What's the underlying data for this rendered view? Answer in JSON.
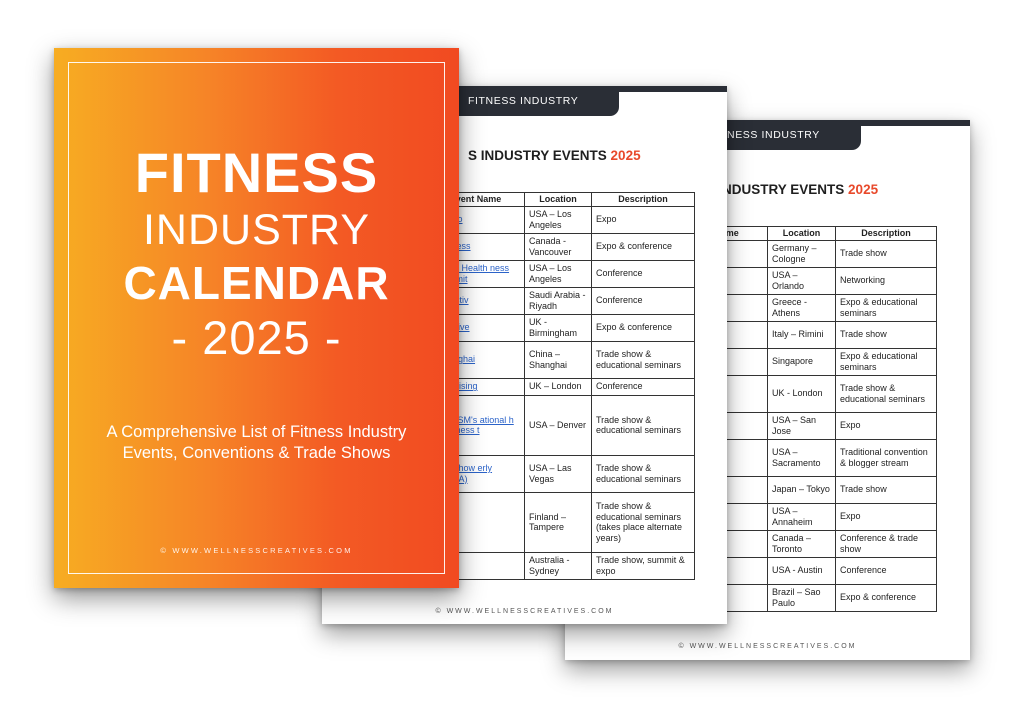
{
  "cover": {
    "line1": "FITNESS",
    "line2": "INDUSTRY",
    "line3": "CALENDAR",
    "line4": "- 2025 -",
    "subtitle": "A Comprehensive List of Fitness Industry Events, Conventions & Trade Shows",
    "footer": "© WWW.WELLNESSCREATIVES.COM"
  },
  "page_mid": {
    "tab": "FITNESS INDUSTRY",
    "heading": "S INDUSTRY EVENTS",
    "heading_year": "2025",
    "columns": [
      "vent Name",
      "Location",
      "Description"
    ],
    "rows": [
      {
        "name": "t Expo",
        "location": "USA – Los Angeles",
        "description": "Expo"
      },
      {
        "name": "Vellness",
        "location": "Canada - Vancouver",
        "description": "Expo & conference"
      },
      {
        "name": "ected Health ness Summit",
        "location": "USA – Los Angeles",
        "description": "Conference"
      },
      {
        "name": "nd Activ",
        "location": "Saudi Arabia - Riyadh",
        "description": "Conference"
      },
      {
        "name": "mX Live",
        "location": "UK - Birmingham",
        "description": "Expo & conference"
      },
      {
        "name": "Shanghai",
        "location": "China – Shanghai",
        "description": "Trade show & educational seminars"
      },
      {
        "name": "e Uprising",
        "location": "UK – London",
        "description": "Conference"
      },
      {
        "name": "& ACSM's ational h & Fitness t",
        "location": "USA – Denver",
        "description": "Trade show & educational seminars"
      },
      {
        "name": "IFA Show erly IHRSA)",
        "location": "USA – Las Vegas",
        "description": "Trade show & educational seminars"
      },
      {
        "name": "ec",
        "location": "Finland – Tampere",
        "description": "Trade show & educational seminars (takes place alternate years)"
      },
      {
        "name": "tness",
        "location": "Australia - Sydney",
        "description": "Trade show, summit & expo"
      }
    ],
    "footer": "© WWW.WELLNESSCREATIVES.COM"
  },
  "page_back": {
    "tab": "TNESS INDUSTRY",
    "heading": "NDUSTRY EVENTS",
    "heading_year": "2025",
    "columns": [
      "Name",
      "Location",
      "Description"
    ],
    "rows": [
      {
        "name": "",
        "location": "Germany – Cologne",
        "description": "Trade show"
      },
      {
        "name": "icas",
        "location": "USA – Orlando",
        "description": "Networking"
      },
      {
        "name": "ness",
        "location": "Greece - Athens",
        "description": "Expo & educational seminars"
      },
      {
        "name": "ness",
        "location": "Italy – Rimini",
        "description": "Trade show"
      },
      {
        "name": "ity",
        "location": "Singapore",
        "description": "Expo & educational seminars"
      },
      {
        "name": "",
        "location": "UK - London",
        "description": "Trade show & educational seminars"
      },
      {
        "name": "",
        "location": "USA – San Jose",
        "description": "Expo"
      },
      {
        "name": "",
        "location": "USA – Sacramento",
        "description": "Traditional convention & blogger stream"
      },
      {
        "name": "",
        "location": "Japan – Tokyo",
        "description": "Trade show"
      },
      {
        "name": "o",
        "location": "USA – Annaheim",
        "description": "Expo"
      },
      {
        "name": "",
        "location": "Canada – Toronto",
        "description": "Conference & trade show"
      },
      {
        "name": "lness",
        "location": "USA - Austin",
        "description": "Conference"
      },
      {
        "name": "sil Expo",
        "location": "Brazil – Sao Paulo",
        "description": "Expo & conference"
      }
    ],
    "footer": "© WWW.WELLNESSCREATIVES.COM"
  }
}
